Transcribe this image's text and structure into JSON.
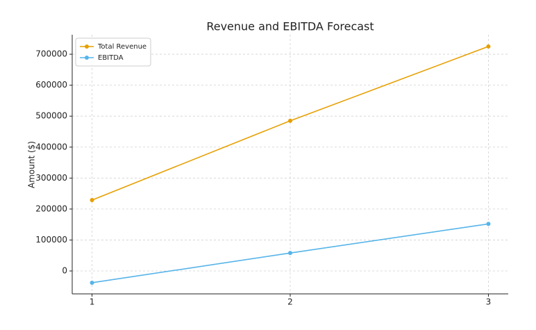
{
  "chart_data": {
    "type": "line",
    "title": "Revenue and EBITDA Forecast",
    "y_label": "Amount ($)",
    "x": [
      1,
      2,
      3
    ],
    "series": [
      {
        "name": "Total Revenue",
        "color": "#e69f00",
        "values": [
          229000,
          485000,
          725000
        ]
      },
      {
        "name": "EBITDA",
        "color": "#56b4e9",
        "values": [
          -38000,
          58000,
          152000
        ]
      }
    ],
    "xlim": [
      0.9,
      3.1
    ],
    "xticks": [
      1,
      2,
      3
    ],
    "ylim": [
      -74000,
      763000
    ],
    "yticks": [
      0,
      100000,
      200000,
      300000,
      400000,
      500000,
      600000,
      700000
    ],
    "grid": true,
    "legend": "upper left"
  }
}
